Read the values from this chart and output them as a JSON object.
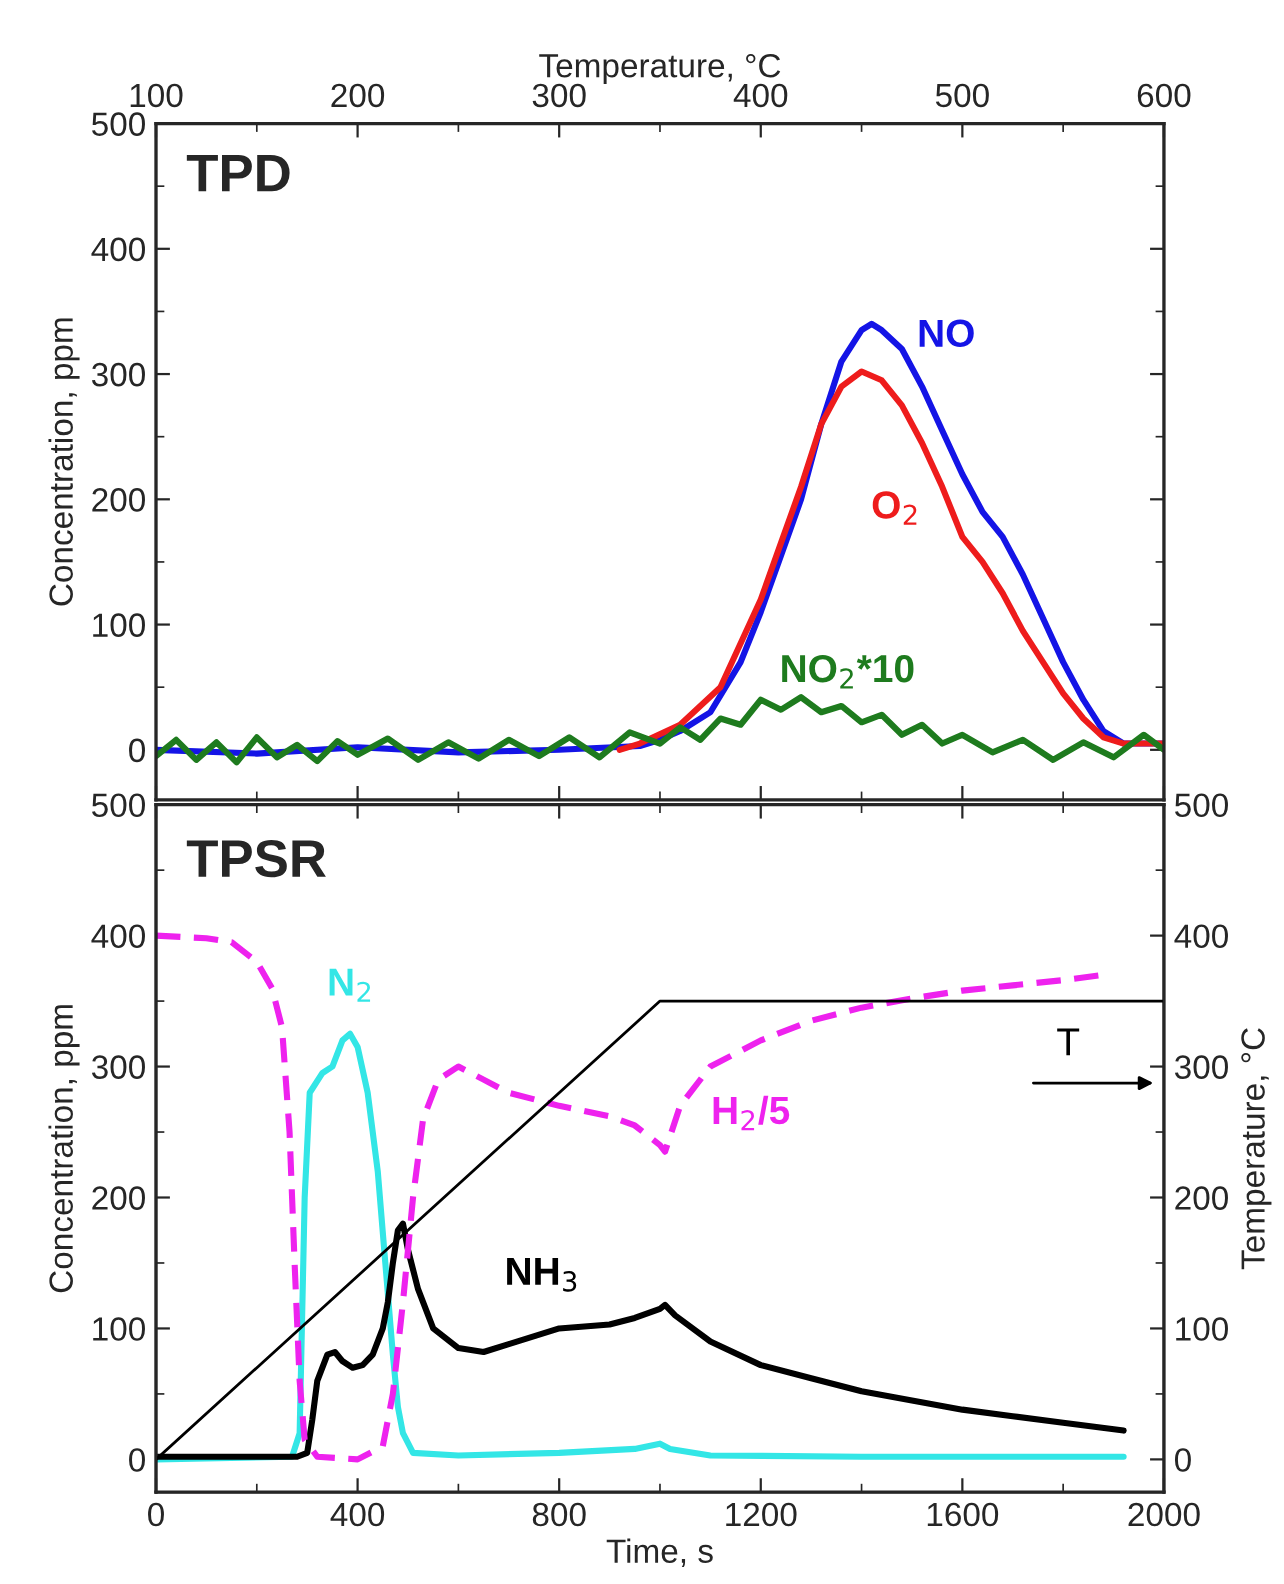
{
  "chart_data": [
    {
      "type": "line",
      "title": "TPD",
      "xlabel": "Temperature, °C",
      "ylabel": "Concentration, ppm",
      "xlim": [
        100,
        600
      ],
      "xticks": [
        100,
        {
          "value": 150,
          "label": null
        },
        200,
        {
          "value": 250,
          "label": null
        },
        300,
        {
          "value": 350,
          "label": null
        },
        400,
        {
          "value": 450,
          "label": null
        },
        500,
        {
          "value": 550,
          "label": null
        },
        600
      ],
      "ylim": [
        -40,
        500
      ],
      "yticks": [
        0,
        {
          "value": 50,
          "label": null
        },
        100,
        {
          "value": 150,
          "label": null
        },
        200,
        {
          "value": 250,
          "label": null
        },
        300,
        {
          "value": 350,
          "label": null
        },
        400,
        {
          "value": 450,
          "label": null
        },
        500
      ],
      "grid": false,
      "legend": false,
      "series": [
        {
          "name": "NO",
          "color": "#1414e6",
          "line_style": "solid",
          "x": [
            100,
            150,
            200,
            250,
            300,
            340,
            350,
            360,
            375,
            390,
            400,
            410,
            420,
            430,
            440,
            450,
            455,
            460,
            470,
            480,
            490,
            500,
            510,
            520,
            530,
            540,
            550,
            560,
            570,
            580,
            600
          ],
          "values": [
            0,
            -3,
            2,
            -2,
            0,
            3,
            8,
            15,
            30,
            70,
            110,
            155,
            200,
            260,
            310,
            335,
            340,
            335,
            320,
            290,
            255,
            220,
            190,
            170,
            140,
            105,
            70,
            40,
            15,
            5,
            5
          ]
        },
        {
          "name": "O$_{2}$",
          "color": "#ee1c1c",
          "line_style": "solid",
          "x": [
            330,
            340,
            360,
            380,
            400,
            410,
            420,
            430,
            440,
            450,
            460,
            470,
            480,
            490,
            500,
            510,
            520,
            530,
            540,
            550,
            560,
            570,
            580,
            600
          ],
          "values": [
            0,
            5,
            20,
            50,
            120,
            165,
            210,
            260,
            290,
            302,
            295,
            275,
            245,
            210,
            170,
            150,
            125,
            95,
            70,
            45,
            25,
            10,
            5,
            5
          ]
        },
        {
          "name": "NO$_{2}$*10",
          "color": "#1e7b1e",
          "line_style": "solid",
          "x": [
            100,
            110,
            120,
            130,
            140,
            150,
            160,
            170,
            180,
            190,
            200,
            215,
            230,
            245,
            260,
            275,
            290,
            305,
            320,
            335,
            350,
            360,
            370,
            380,
            390,
            400,
            410,
            420,
            430,
            440,
            450,
            460,
            470,
            480,
            490,
            500,
            515,
            530,
            545,
            560,
            575,
            590,
            600
          ],
          "values": [
            -5,
            8,
            -8,
            6,
            -10,
            10,
            -6,
            4,
            -9,
            7,
            -4,
            9,
            -8,
            6,
            -7,
            8,
            -5,
            10,
            -6,
            14,
            5,
            18,
            8,
            25,
            20,
            40,
            32,
            42,
            30,
            35,
            22,
            28,
            12,
            20,
            5,
            12,
            -2,
            8,
            -8,
            6,
            -6,
            12,
            0
          ]
        }
      ]
    },
    {
      "type": "line",
      "title": "TPSR",
      "xlabel": "Time, s",
      "ylabel": "Concentration, ppm",
      "y2label": "Temperature, °C",
      "xlim": [
        0,
        2000
      ],
      "xticks": [
        0,
        {
          "value": 200,
          "label": null
        },
        400,
        {
          "value": 600,
          "label": null
        },
        800,
        {
          "value": 1000,
          "label": null
        },
        1200,
        {
          "value": 1400,
          "label": null
        },
        1600,
        {
          "value": 1800,
          "label": null
        },
        2000
      ],
      "ylim": [
        -25,
        500
      ],
      "yticks": [
        0,
        {
          "value": 50,
          "label": null
        },
        100,
        {
          "value": 150,
          "label": null
        },
        200,
        {
          "value": 250,
          "label": null
        },
        300,
        {
          "value": 350,
          "label": null
        },
        400,
        {
          "value": 450,
          "label": null
        },
        500
      ],
      "y2lim": [
        -25,
        500
      ],
      "y2ticks": [
        0,
        {
          "value": 50,
          "label": null
        },
        100,
        {
          "value": 150,
          "label": null
        },
        200,
        {
          "value": 250,
          "label": null
        },
        300,
        {
          "value": 350,
          "label": null
        },
        400,
        {
          "value": 450,
          "label": null
        },
        500
      ],
      "grid": false,
      "legend": false,
      "series": [
        {
          "name": "N$_{2}$",
          "color": "#33e6e6",
          "line_style": "solid",
          "x": [
            0,
            270,
            285,
            295,
            305,
            330,
            350,
            370,
            385,
            400,
            420,
            440,
            455,
            470,
            480,
            490,
            510,
            600,
            800,
            950,
            1000,
            1020,
            1100,
            1400,
            1920
          ],
          "values": [
            0,
            2,
            20,
            200,
            280,
            295,
            300,
            320,
            325,
            315,
            280,
            220,
            150,
            80,
            40,
            20,
            5,
            3,
            5,
            8,
            12,
            8,
            3,
            2,
            2
          ]
        },
        {
          "name": "NH$_{3}$",
          "color": "#000000",
          "line_style": "solid",
          "x": [
            0,
            280,
            300,
            310,
            320,
            340,
            355,
            370,
            390,
            410,
            430,
            450,
            460,
            470,
            480,
            490,
            500,
            520,
            550,
            600,
            650,
            700,
            800,
            900,
            950,
            1000,
            1010,
            1030,
            1100,
            1200,
            1300,
            1400,
            1500,
            1600,
            1700,
            1800,
            1920
          ],
          "values": [
            2,
            2,
            5,
            30,
            60,
            80,
            82,
            75,
            70,
            72,
            80,
            100,
            120,
            150,
            175,
            180,
            160,
            130,
            100,
            85,
            82,
            88,
            100,
            103,
            108,
            115,
            118,
            110,
            90,
            72,
            62,
            52,
            45,
            38,
            33,
            28,
            22
          ]
        },
        {
          "name": "H$_{2}$/5",
          "color": "#ee22ee",
          "line_style": "dashed",
          "x": [
            0,
            100,
            150,
            200,
            230,
            250,
            265,
            275,
            285,
            295,
            320,
            400,
            450,
            470,
            490,
            510,
            530,
            560,
            600,
            650,
            700,
            800,
            900,
            950,
            1000,
            1010,
            1040,
            1100,
            1200,
            1300,
            1400,
            1500,
            1600,
            1700,
            1800,
            1880
          ],
          "values": [
            400,
            398,
            395,
            380,
            360,
            330,
            250,
            150,
            60,
            15,
            2,
            0,
            10,
            50,
            120,
            200,
            260,
            290,
            300,
            290,
            280,
            270,
            262,
            255,
            240,
            235,
            270,
            300,
            320,
            335,
            345,
            352,
            358,
            362,
            366,
            370
          ]
        },
        {
          "name": "T",
          "color": "#000000",
          "line_style": "solid",
          "axis": "y2",
          "x": [
            0,
            1000,
            2000
          ],
          "values": [
            0,
            350,
            350
          ]
        }
      ]
    }
  ]
}
